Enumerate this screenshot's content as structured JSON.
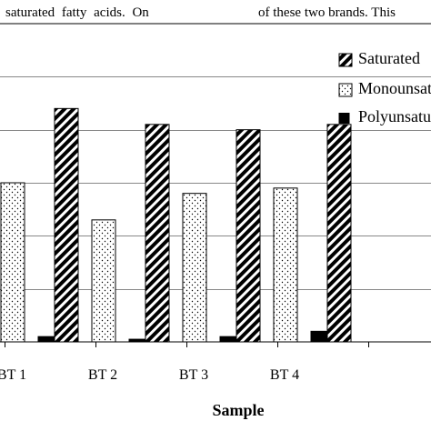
{
  "header_text": {
    "left": "saturated fatty acids. On",
    "right": "of these two brands. This"
  },
  "chart_data": {
    "type": "bar",
    "categories": [
      "BT 1",
      "BT 2",
      "BT 3",
      "BT 4",
      ""
    ],
    "series": [
      {
        "name": "Saturated",
        "values": [
          0.4,
          0.44,
          0.41,
          0.4,
          0.41
        ],
        "pattern": "diagonal-stripes"
      },
      {
        "name": "Monounsaturated",
        "values": [
          0.3,
          0.23,
          0.28,
          0.29,
          null
        ],
        "pattern": "dots"
      },
      {
        "name": "Polyunsaturated",
        "values": [
          0.01,
          0.005,
          0.01,
          0.02,
          null
        ],
        "pattern": "solid-black"
      }
    ],
    "xlabel": "Sample",
    "ylabel": "",
    "ylim": [
      0,
      0.6
    ],
    "grid": true,
    "legend_position": "top-right"
  }
}
